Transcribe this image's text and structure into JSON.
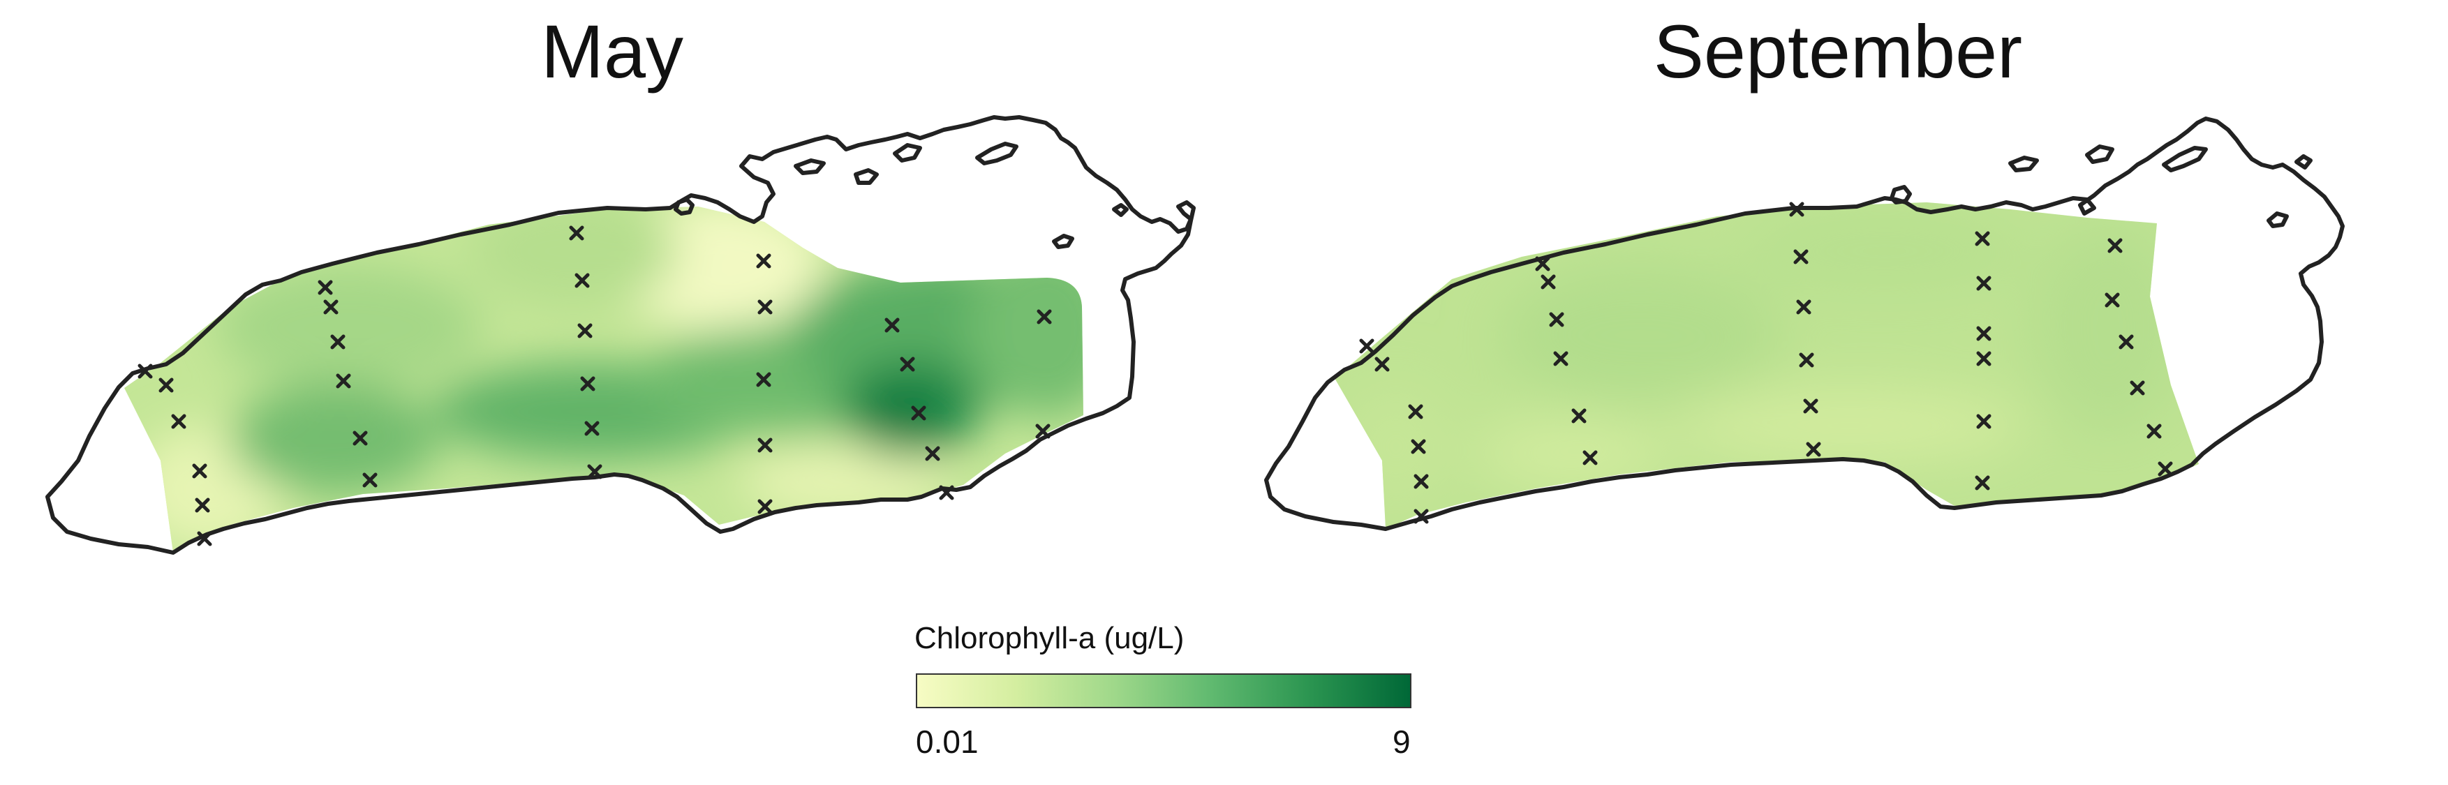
{
  "panels": [
    {
      "title": "May",
      "map": "Lake Erie outline with interpolated chlorophyll-a surface"
    },
    {
      "title": "September",
      "map": "Lake Erie outline with interpolated chlorophyll-a surface"
    }
  ],
  "legend": {
    "title": "Chlorophyll-a (ug/L)",
    "min_label": "0.01",
    "max_label": "9",
    "min_value": 0.01,
    "max_value": 9,
    "colors": [
      "#f7fcc4",
      "#d4eea0",
      "#9fd88a",
      "#5fb96f",
      "#2a9450",
      "#006837"
    ]
  },
  "colors": {
    "outline": "#222222",
    "station_marker": "#222222"
  },
  "station_marker_symbol": "×"
}
